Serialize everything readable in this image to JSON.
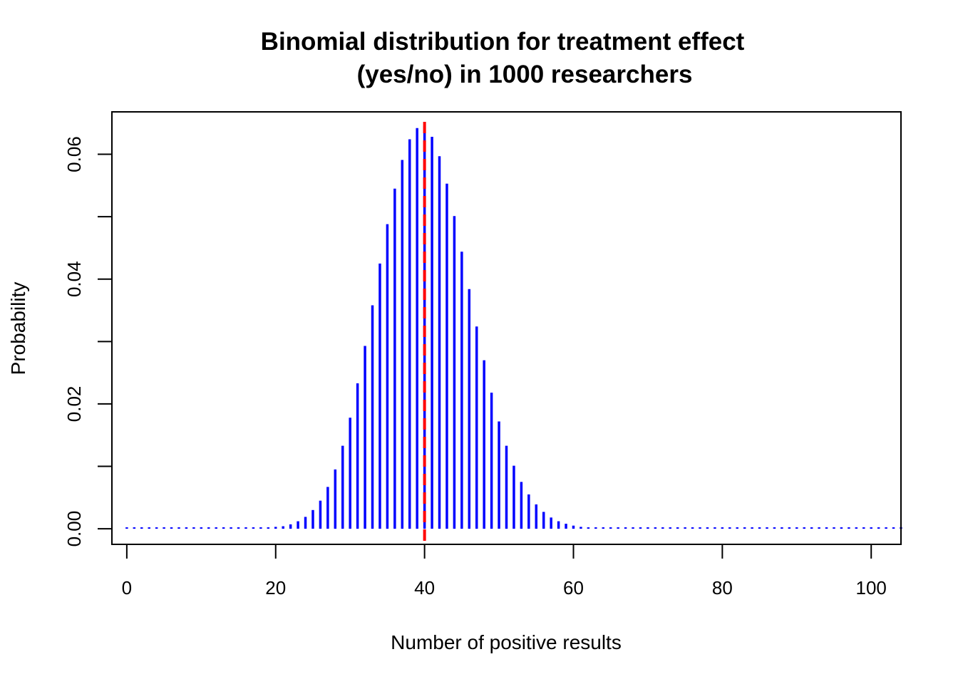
{
  "chart_data": {
    "type": "bar",
    "title_lines": [
      "Binomial distribution for treatment effect",
      "(yes/no) in 1000 researchers"
    ],
    "xlabel": "Number of positive results",
    "ylabel": "Probability",
    "xlim": [
      -2,
      104
    ],
    "ylim": [
      -0.0025,
      0.0668
    ],
    "x_ticks": [
      0,
      20,
      40,
      60,
      80,
      100
    ],
    "x_tick_labels": [
      "0",
      "20",
      "40",
      "60",
      "80",
      "100"
    ],
    "y_ticks": [
      0.0,
      0.01,
      0.02,
      0.03,
      0.04,
      0.05,
      0.06
    ],
    "y_tick_labels": [
      "0.00",
      "",
      "0.02",
      "",
      "0.04",
      "",
      "0.06"
    ],
    "x": [
      0,
      1,
      2,
      3,
      4,
      5,
      6,
      7,
      8,
      9,
      10,
      11,
      12,
      13,
      14,
      15,
      16,
      17,
      18,
      19,
      20,
      21,
      22,
      23,
      24,
      25,
      26,
      27,
      28,
      29,
      30,
      31,
      32,
      33,
      34,
      35,
      36,
      37,
      38,
      39,
      40,
      41,
      42,
      43,
      44,
      45,
      46,
      47,
      48,
      49,
      50,
      51,
      52,
      53,
      54,
      55,
      56,
      57,
      58,
      59,
      60,
      61,
      62,
      63,
      64,
      65,
      66,
      67,
      68,
      69,
      70,
      71,
      72,
      73,
      74,
      75,
      76,
      77,
      78,
      79,
      80,
      81,
      82,
      83,
      84,
      85,
      86,
      87,
      88,
      89,
      90,
      91,
      92,
      93,
      94,
      95,
      96,
      97,
      98,
      99,
      100,
      101,
      102,
      103,
      104
    ],
    "values": [
      0,
      0,
      0,
      0,
      0,
      0,
      0,
      0,
      0,
      0,
      0,
      0,
      0,
      0,
      0,
      0,
      0,
      0,
      0,
      0.0002,
      0.0003,
      0.0004,
      0.0007,
      0.0012,
      0.0019,
      0.003,
      0.0045,
      0.0067,
      0.0095,
      0.0133,
      0.0178,
      0.0233,
      0.0293,
      0.0358,
      0.0425,
      0.0488,
      0.0545,
      0.0591,
      0.0624,
      0.0642,
      0.0645,
      0.0628,
      0.0597,
      0.0553,
      0.0501,
      0.0444,
      0.0384,
      0.0324,
      0.027,
      0.0218,
      0.0172,
      0.0133,
      0.0101,
      0.0075,
      0.0055,
      0.0039,
      0.0027,
      0.0018,
      0.0012,
      0.0008,
      0.0005,
      0.0003,
      0.0002,
      0.0001,
      0.0001,
      0,
      0,
      0,
      0,
      0,
      0,
      0,
      0,
      0,
      0,
      0,
      0,
      0,
      0,
      0,
      0,
      0,
      0,
      0,
      0,
      0,
      0,
      0,
      0,
      0,
      0,
      0,
      0,
      0,
      0,
      0,
      0,
      0,
      0,
      0,
      0,
      0,
      0,
      0,
      0
    ],
    "reference_line": {
      "x": 40,
      "color": "#ff0000",
      "style": "dashed"
    },
    "colors": {
      "bars": "#0000ff",
      "reference": "#ff0000"
    },
    "grid": false
  }
}
